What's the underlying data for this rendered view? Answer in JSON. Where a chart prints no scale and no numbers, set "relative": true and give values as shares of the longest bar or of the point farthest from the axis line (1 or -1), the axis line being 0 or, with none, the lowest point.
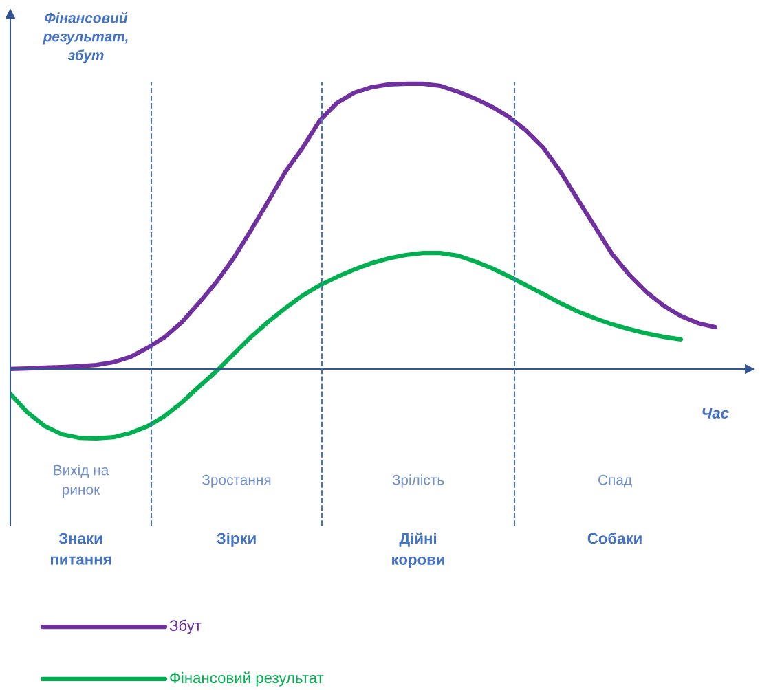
{
  "chart_data": {
    "type": "line",
    "relative": true,
    "ylabel": "Фінансовий\nрезультат,\nзбут",
    "xlabel": "Час",
    "categories": [
      null,
      null,
      null,
      null,
      null,
      null,
      null,
      null,
      null,
      null,
      null,
      null,
      null,
      null,
      null,
      null,
      null,
      null,
      null,
      null,
      null,
      null,
      null,
      null,
      null,
      null,
      null,
      null,
      null,
      null,
      null,
      null,
      null,
      null,
      null,
      null,
      null,
      null,
      null,
      null,
      null,
      null
    ],
    "series": [
      {
        "name": "Збут",
        "color": "#7030a0",
        "values": [
          0,
          0.002,
          0.005,
          0.007,
          0.01,
          0.014,
          0.024,
          0.043,
          0.075,
          0.113,
          0.166,
          0.234,
          0.306,
          0.39,
          0.487,
          0.588,
          0.692,
          0.776,
          0.872,
          0.933,
          0.969,
          0.988,
          0.998,
          1,
          1,
          0.993,
          0.973,
          0.949,
          0.92,
          0.884,
          0.836,
          0.776,
          0.692,
          0.595,
          0.499,
          0.403,
          0.33,
          0.27,
          0.222,
          0.186,
          0.161,
          0.147
        ]
      },
      {
        "name": "Фінансовий результат",
        "color": "#00b050",
        "values": [
          -0.087,
          -0.152,
          -0.2,
          -0.229,
          -0.241,
          -0.243,
          -0.239,
          -0.224,
          -0.2,
          -0.164,
          -0.116,
          -0.06,
          -0.007,
          0.053,
          0.113,
          0.166,
          0.214,
          0.258,
          0.294,
          0.323,
          0.349,
          0.371,
          0.388,
          0.4,
          0.407,
          0.407,
          0.398,
          0.378,
          0.354,
          0.325,
          0.294,
          0.263,
          0.231,
          0.202,
          0.178,
          0.157,
          0.14,
          0.125,
          0.113,
          0.104,
          null,
          null
        ]
      }
    ],
    "ref_lines": [
      {
        "axis": "y",
        "value": 0,
        "color": "#2f5597"
      }
    ],
    "annotations": [
      "Вихід на\nринок",
      "Зростання",
      "Зрілість",
      "Спад",
      "Знаки\nпитання",
      "Зірки",
      "Дійні\nкорови",
      "Собаки"
    ],
    "line_style": "solid",
    "marker": "none",
    "legend": "bottom left"
  }
}
